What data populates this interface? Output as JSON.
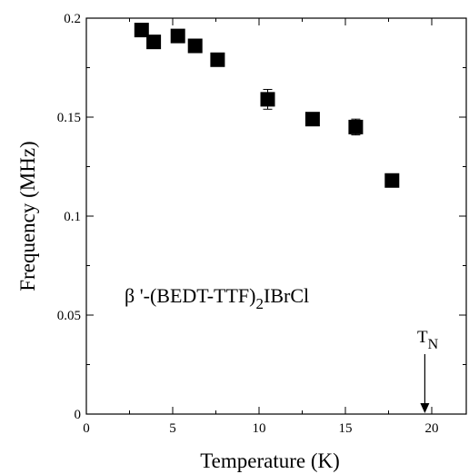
{
  "chart_data": {
    "type": "scatter",
    "title": "",
    "xlabel": "Temperature (K)",
    "ylabel": "Frequency (MHz)",
    "xlim": [
      0,
      22
    ],
    "ylim": [
      0,
      0.2
    ],
    "x_ticks": [
      0,
      5,
      10,
      15,
      20
    ],
    "x_tick_labels": [
      "0",
      "5",
      "10",
      "15",
      "20"
    ],
    "y_ticks": [
      0,
      0.05,
      0.1,
      0.15,
      0.2
    ],
    "y_tick_labels": [
      "0",
      "0.05",
      "0.1",
      "0.15",
      "0.2"
    ],
    "grid": false,
    "marker": "filled-square",
    "series": [
      {
        "points": [
          {
            "x": 3.2,
            "y": 0.194,
            "err": 0.002
          },
          {
            "x": 3.9,
            "y": 0.188,
            "err": 0.002
          },
          {
            "x": 5.3,
            "y": 0.191,
            "err": 0.002
          },
          {
            "x": 6.3,
            "y": 0.186,
            "err": 0.002
          },
          {
            "x": 7.6,
            "y": 0.179,
            "err": 0.002
          },
          {
            "x": 10.5,
            "y": 0.159,
            "err": 0.005
          },
          {
            "x": 13.1,
            "y": 0.149,
            "err": 0.002
          },
          {
            "x": 15.6,
            "y": 0.145,
            "err": 0.004
          },
          {
            "x": 17.7,
            "y": 0.118,
            "err": 0.002
          }
        ]
      }
    ],
    "annotations": {
      "compound": {
        "main": "β '-(BEDT-TTF)",
        "sub": "2",
        "tail": "IBrCl"
      },
      "transition": {
        "label": "T",
        "sub": "N",
        "x": 19.6
      }
    }
  }
}
